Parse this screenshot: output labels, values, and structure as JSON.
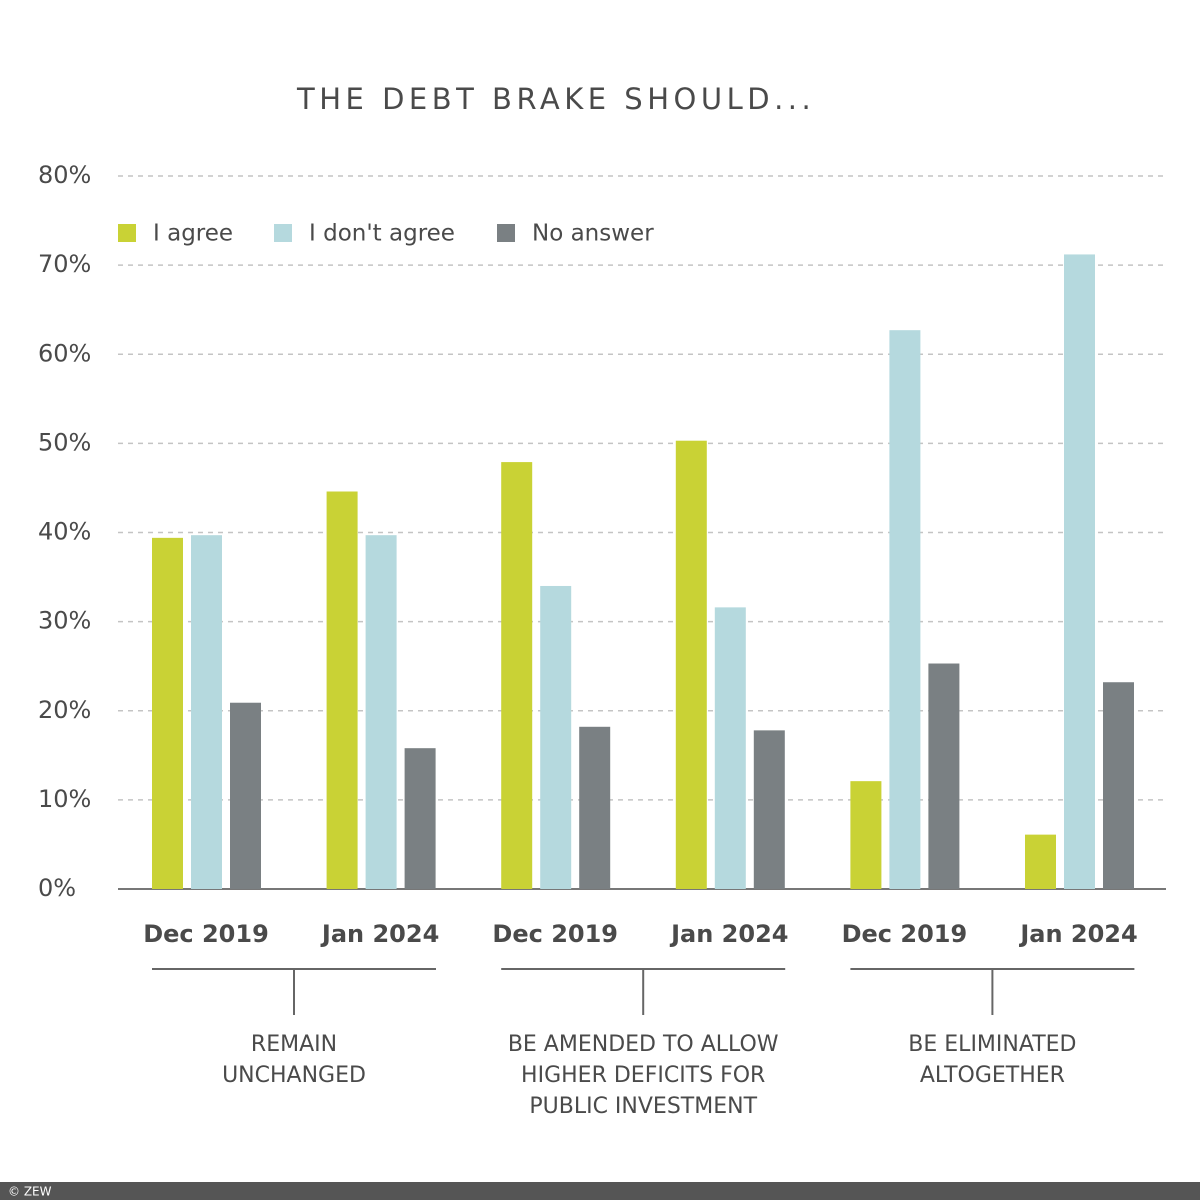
{
  "chart_data": {
    "type": "bar",
    "title": "THE DEBT BRAKE SHOULD...",
    "categories": [
      "Dec 2019",
      "Jan 2024",
      "Dec 2019",
      "Jan 2024",
      "Dec 2019",
      "Jan 2024"
    ],
    "groups": [
      {
        "label": [
          "REMAIN",
          "UNCHANGED"
        ]
      },
      {
        "label": [
          "BE AMENDED TO ALLOW",
          "HIGHER DEFICITS FOR",
          "PUBLIC INVESTMENT"
        ]
      },
      {
        "label": [
          "BE ELIMINATED",
          "ALTOGETHER"
        ]
      }
    ],
    "series": [
      {
        "name": "I agree",
        "color": "#c9d235",
        "values": [
          39.4,
          44.6,
          47.9,
          50.3,
          12.1,
          6.1
        ]
      },
      {
        "name": "I don't agree",
        "color": "#b5d9de",
        "values": [
          39.7,
          39.7,
          34.0,
          31.6,
          62.7,
          71.2
        ]
      },
      {
        "name": "No answer",
        "color": "#7a8083",
        "values": [
          20.9,
          15.8,
          18.2,
          17.8,
          25.3,
          23.2
        ]
      }
    ],
    "ylim": [
      0,
      80
    ],
    "yticks": [
      {
        "value": 0,
        "label": "0%"
      },
      {
        "value": 10,
        "label": "10%"
      },
      {
        "value": 20,
        "label": "20%"
      },
      {
        "value": 30,
        "label": "30%"
      },
      {
        "value": 40,
        "label": "40%"
      },
      {
        "value": 50,
        "label": "50%"
      },
      {
        "value": 60,
        "label": "60%"
      },
      {
        "value": 70,
        "label": "70%"
      },
      {
        "value": 80,
        "label": "80%"
      }
    ],
    "grid": true
  },
  "footer": "© ZEW"
}
